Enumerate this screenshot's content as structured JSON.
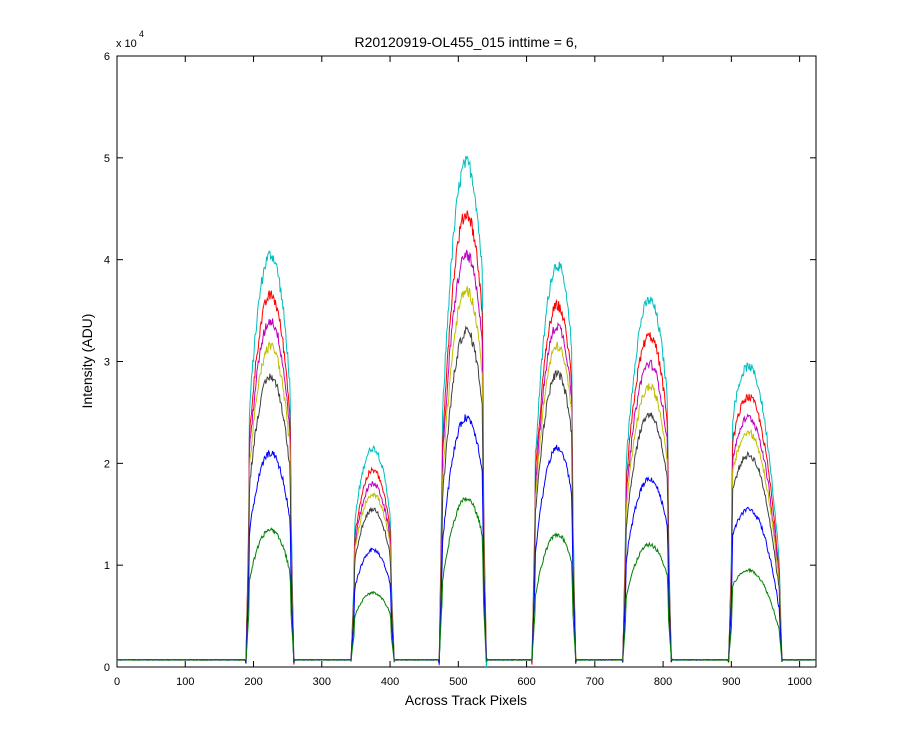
{
  "chart_data": {
    "type": "line",
    "title": "R20120919-OL455_015 inttime = 6,",
    "xlabel": "Across Track Pixels",
    "ylabel": "Intensity (ADU)",
    "y_multiplier_label": {
      "prefix": "x 10",
      "exponent": "4"
    },
    "xlim": [
      0,
      1024
    ],
    "ylim": [
      0,
      60000
    ],
    "x_ticks": [
      0,
      100,
      200,
      300,
      400,
      500,
      600,
      700,
      800,
      900,
      1000
    ],
    "y_ticks": [
      0,
      10000,
      20000,
      30000,
      40000,
      50000,
      60000
    ],
    "y_tick_labels": [
      "0",
      "1",
      "2",
      "3",
      "4",
      "5",
      "6"
    ],
    "grid": false,
    "legend": "none",
    "baseline": 700,
    "peaks": [
      {
        "x_start": 193,
        "x_end": 255,
        "center": 225
      },
      {
        "x_start": 347,
        "x_end": 402,
        "center": 375
      },
      {
        "x_start": 476,
        "x_end": 537,
        "center": 512
      },
      {
        "x_start": 612,
        "x_end": 668,
        "center": 645
      },
      {
        "x_start": 745,
        "x_end": 808,
        "center": 780
      },
      {
        "x_start": 900,
        "x_end": 970,
        "center": 925
      }
    ],
    "series": [
      {
        "color": "#00bfbf",
        "peak_values": [
          40500,
          21500,
          49500,
          39500,
          36000,
          29500
        ]
      },
      {
        "color": "#ff0000",
        "peak_values": [
          36500,
          19300,
          44500,
          35500,
          32500,
          26500
        ]
      },
      {
        "color": "#bf00bf",
        "peak_values": [
          34000,
          18000,
          40500,
          33500,
          29800,
          24500
        ]
      },
      {
        "color": "#bfbf00",
        "peak_values": [
          31500,
          17000,
          37000,
          31500,
          27500,
          23000
        ]
      },
      {
        "color": "#404040",
        "peak_values": [
          28500,
          15500,
          33000,
          28800,
          24800,
          20800
        ]
      },
      {
        "color": "#0000ff",
        "peak_values": [
          21000,
          11500,
          24500,
          21500,
          18500,
          15500
        ]
      },
      {
        "color": "#008000",
        "peak_values": [
          13500,
          7300,
          16500,
          13000,
          12000,
          9500
        ]
      }
    ]
  }
}
